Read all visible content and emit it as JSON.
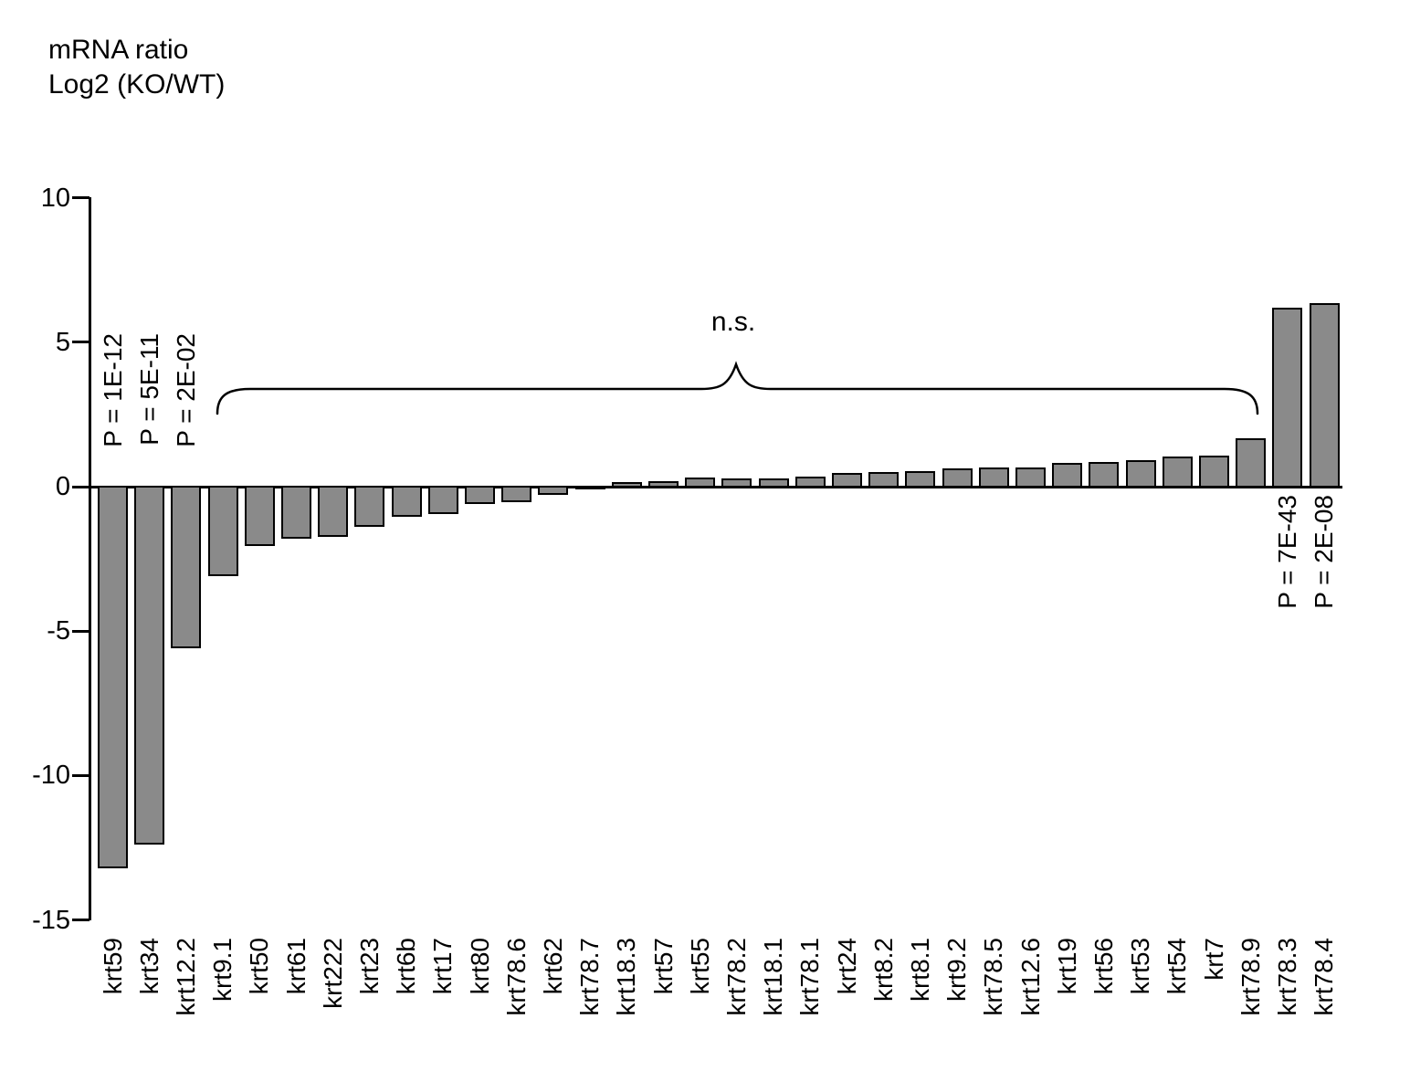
{
  "title": {
    "line1": "mRNA ratio",
    "line2": "Log2 (KO/WT)"
  },
  "chart_data": {
    "type": "bar",
    "title": "mRNA ratio Log2 (KO/WT)",
    "xlabel": "",
    "ylabel": "mRNA ratio Log2 (KO/WT)",
    "ylim": [
      -15,
      10
    ],
    "yticks": [
      "10",
      "5",
      "0",
      "-5",
      "-10",
      "-15"
    ],
    "grid": "off",
    "legend": "none",
    "bar_fill_color": "#8a8a8a",
    "bar_border_color": "#000000",
    "categories": [
      "krt59",
      "krt34",
      "krt12.2",
      "krt9.1",
      "krt50",
      "krt61",
      "krt222",
      "krt23",
      "krt6b",
      "krt17",
      "krt80",
      "krt78.6",
      "krt62",
      "krt78.7",
      "krt18.3",
      "krt57",
      "krt55",
      "krt78.2",
      "krt18.1",
      "krt78.1",
      "krt24",
      "krt8.2",
      "krt8.1",
      "krt9.2",
      "krt78.5",
      "krt12.6",
      "krt19",
      "krt56",
      "krt53",
      "krt54",
      "krt7",
      "krt78.9",
      "krt78.3",
      "krt78.4"
    ],
    "values": [
      -13.2,
      -12.4,
      -5.6,
      -3.1,
      -2.05,
      -1.8,
      -1.75,
      -1.4,
      -1.05,
      -0.95,
      -0.6,
      -0.55,
      -0.3,
      -0.07,
      0.15,
      0.2,
      0.33,
      0.3,
      0.3,
      0.36,
      0.46,
      0.52,
      0.55,
      0.63,
      0.66,
      0.65,
      0.82,
      0.85,
      0.92,
      1.05,
      1.08,
      1.68,
      6.2,
      6.35
    ],
    "annotations": {
      "left_pvalues": [
        {
          "category": "krt59",
          "label": "P = 1E-12"
        },
        {
          "category": "krt34",
          "label": "P = 5E-11"
        },
        {
          "category": "krt12.2",
          "label": "P = 2E-02"
        }
      ],
      "right_pvalues": [
        {
          "category": "krt78.3",
          "label": "P = 7E-43"
        },
        {
          "category": "krt78.4",
          "label": "P = 2E-08"
        }
      ],
      "ns_label": "n.s.",
      "ns_brace_span": {
        "from": "krt9.1",
        "to": "krt78.9"
      }
    }
  }
}
